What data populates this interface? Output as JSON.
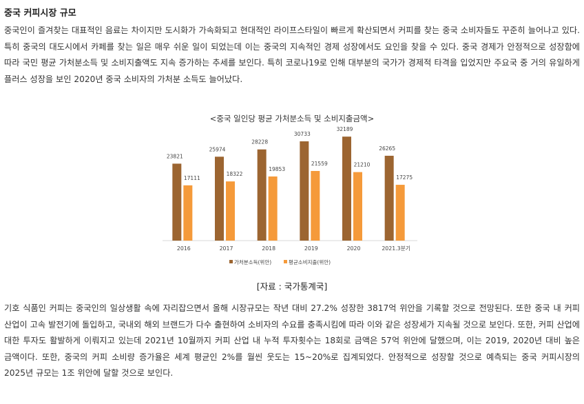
{
  "section": {
    "title": "중국 커피시장 규모",
    "paragraph1": "중국인이 즐겨찾는 대표적인 음료는 차이지만 도시화가 가속화되고 현대적인 라이프스타일이 빠르게 확산되면서 커피를 찾는 중국 소비자들도 꾸준히 늘어나고 있다. 특히 중국의 대도시에서 카페를 찾는 일은 매우 쉬운 일이 되었는데 이는 중국의 지속적인 경제 성장에서도 요인을 찾을 수 있다. 중국 경제가 안정적으로 성장함에 따라 국민 평균 가처분소득 및 소비지출액도 지속 증가하는 추세를 보인다. 특히 코로나19로 인해 대부분의 국가가 경제적 타격을 입었지만 주요국 중 거의 유일하게 플러스 성장을 보인 2020년 중국 소비자의 가처분 소득도 늘어났다.",
    "source": "[자료 : 국가통계국]",
    "paragraph2": "기호 식품인 커피는 중국인의 일상생활 속에 자리잡으면서 올해 시장규모는 작년 대비 27.2% 성장한 3817억 위안을 기록할 것으로 전망된다. 또한 중국 내 커피 산업이 고속 발전기에 돌입하고, 국내외 해외 브랜드가 다수 출현하여 소비자의 수요를 충족시킴에 따라 이와 같은 성장세가 지속될 것으로 보인다. 또한, 커피 산업에 대한 투자도 활발하게 이뤄지고 있는데 2021년 10월까지 커피 산업 내 누적 투자횟수는 18회로 금액은 57억 위안에 달했으며, 이는 2019, 2020년 대비 높은 금액이다. 또한, 중국의 커피 소비량 증가율은 세계 평균인 2%를 월씬 웃도는 15~20%로 집계되었다. 안정적으로 성장할 것으로 예측되는 중국 커피시장의 2025년 규모는 1조 위안에 달할 것으로 보인다."
  },
  "chart_data": {
    "type": "bar",
    "title": "<중국 일인당 평균 가처분소득 및 소비지출금액>",
    "categories": [
      "2016",
      "2017",
      "2018",
      "2019",
      "2020",
      "2021.3분기"
    ],
    "series": [
      {
        "name": "가처분소득(위안)",
        "values": [
          23821,
          25974,
          28228,
          30733,
          32189,
          26265
        ],
        "color": "#9c6531"
      },
      {
        "name": "평균소비지출(위안)",
        "values": [
          17111,
          18322,
          19853,
          21559,
          21210,
          17275
        ],
        "color": "#f59a3a"
      }
    ],
    "ylim": [
      0,
      35000
    ],
    "grid": false,
    "legend": "bottom",
    "data_labels": true
  }
}
